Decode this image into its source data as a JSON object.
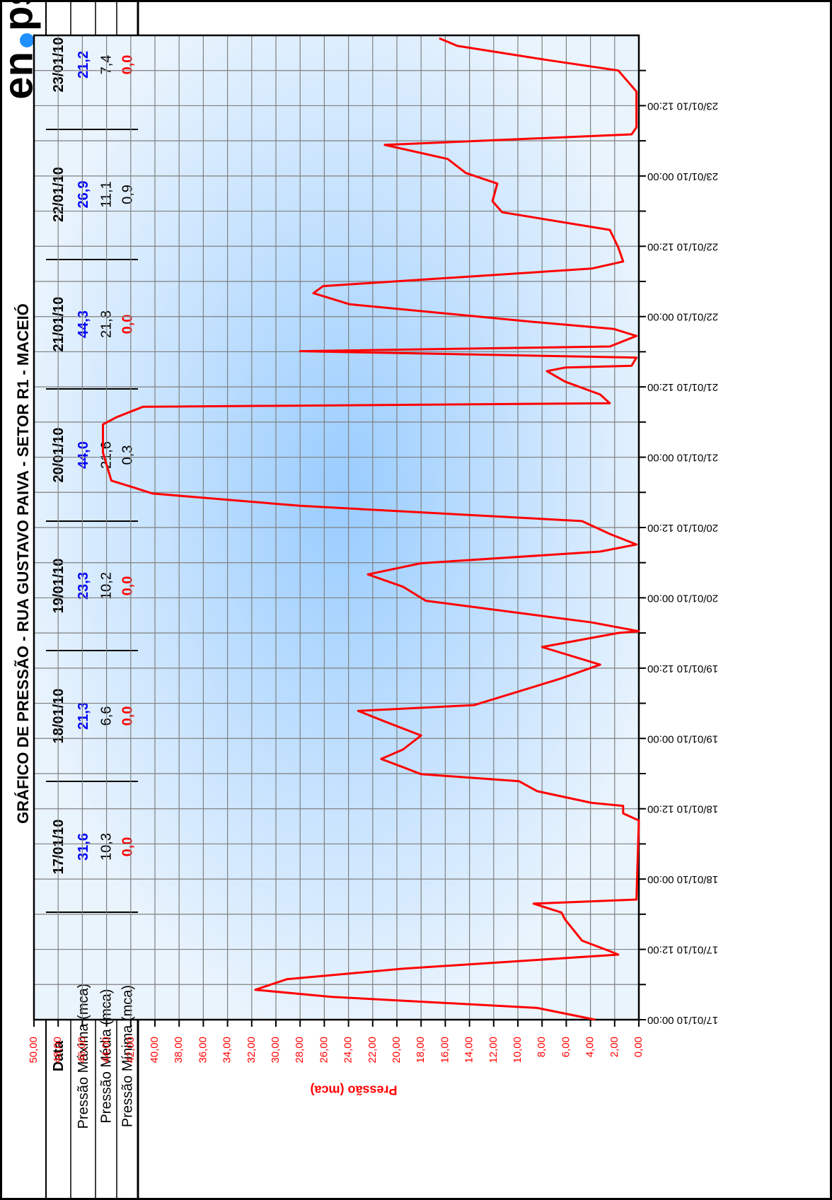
{
  "header": {
    "title": "GRÁFICO DE PRESSÃO -  RUA GUSTAVO PAIVA - SETOR R1 - MACEIÓ",
    "logo": {
      "left": "en",
      "right": "ps"
    }
  },
  "table": {
    "header": [
      "Data",
      "17/01/10",
      "18/01/10",
      "19/01/10",
      "20/01/10",
      "21/01/10",
      "22/01/10",
      "23/01/10"
    ],
    "rows": [
      [
        "Pressão Máxima (mca)",
        "31,6",
        "21,3",
        "23,3",
        "44,0",
        "44,3",
        "26,9",
        "21,2"
      ],
      [
        "Pressão Média (mca)",
        "10,3",
        "6,6",
        "10,2",
        "21,6",
        "21,8",
        "11,1",
        "7,4"
      ],
      [
        "Pressão Mínima (mca)",
        "0,0",
        "0,0",
        "0,0",
        "0,3",
        "0,0",
        "0,9",
        "0,0"
      ]
    ]
  },
  "chart_data": {
    "type": "line",
    "y_label": "Pressão (mca)",
    "x": [
      "17/01/10 00:00",
      "17/01/10 02:00",
      "17/01/10 03:54",
      "17/01/10 05:06",
      "17/01/10 06:54",
      "17/01/10 08:42",
      "17/01/10 11:06",
      "17/01/10 11:42",
      "17/01/10 13:30",
      "17/01/10 17:06",
      "17/01/10 18:18",
      "17/01/10 19:48",
      "17/01/10 20:30",
      "18/01/10 10:00",
      "18/01/10 11:12",
      "18/01/10 12:30",
      "18/01/10 13:00",
      "18/01/10 15:00",
      "18/01/10 16:42",
      "18/01/10 17:54",
      "18/01/10 19:06",
      "18/01/10 20:30",
      "18/01/10 22:06",
      "19/01/10 00:30",
      "19/01/10 02:54",
      "19/01/10 04:42",
      "19/01/10 05:42",
      "19/01/10 10:12",
      "19/01/10 12:36",
      "19/01/10 15:36",
      "19/01/10 18:00",
      "19/01/10 18:18",
      "19/01/10 19:48",
      "19/01/10 23:30",
      "20/01/10 01:54",
      "20/01/10 04:00",
      "20/01/10 05:54",
      "20/01/10 07:54",
      "20/01/10 09:06",
      "20/01/10 10:54",
      "20/01/10 13:06",
      "20/01/10 15:42",
      "20/01/10 17:48",
      "20/01/10 18:48",
      "20/01/10 20:00",
      "21/01/10 00:48",
      "21/01/10 05:36",
      "21/01/10 06:48",
      "21/01/10 08:36",
      "21/01/10 09:12",
      "21/01/10 10:42",
      "21/01/10 12:54",
      "21/01/10 14:42",
      "21/01/10 15:18",
      "21/01/10 15:36",
      "21/01/10 17:00",
      "21/01/10 18:06",
      "21/01/10 18:54",
      "21/01/10 20:42",
      "21/01/10 21:54",
      "21/01/10 23:06",
      "22/01/10 02:06",
      "22/01/10 04:00",
      "22/01/10 05:12",
      "22/01/10 08:12",
      "22/01/10 09:24",
      "22/01/10 11:48",
      "22/01/10 14:48",
      "22/01/10 17:48",
      "22/01/10 19:42",
      "22/01/10 22:42",
      "23/01/10 00:30",
      "23/01/10 02:54",
      "23/01/10 05:18",
      "23/01/10 07:06",
      "23/01/10 08:18",
      "23/01/10 14:24",
      "23/01/10 18:00",
      "23/01/10 19:48",
      "23/01/10 22:12",
      "23/01/10 23:30"
    ],
    "series": [
      {
        "color": "#ff0000",
        "values": [
          3.6,
          8.4,
          25.4,
          31.7,
          29.1,
          19.5,
          1.7,
          2.4,
          4.7,
          6.1,
          6.4,
          8.7,
          0.2,
          0,
          1.3,
          1.3,
          3.9,
          8.4,
          9.9,
          18.0,
          19.5,
          21.3,
          19.5,
          18.0,
          21.0,
          23.2,
          13.6,
          6.5,
          3.2,
          8.0,
          1.7,
          0,
          3.9,
          17.6,
          19.5,
          22.4,
          18.0,
          3.2,
          0.2,
          2.4,
          4.7,
          28.0,
          40.2,
          41.7,
          43.6,
          44.3,
          44.3,
          43.2,
          41.0,
          2.4,
          3.2,
          6.1,
          7.6,
          6.1,
          0.6,
          0.2,
          28.0,
          2.4,
          0.2,
          2.1,
          8.7,
          23.9,
          26.9,
          26.1,
          3.9,
          1.3,
          1.7,
          2.4,
          11.3,
          12.1,
          11.7,
          14.3,
          15.8,
          21.0,
          0.6,
          0.2,
          0.2,
          1.7,
          7.6,
          15.0,
          16.5
        ]
      }
    ],
    "xlim": [
      "17/01/10 00:00",
      "24/01/10 00:00"
    ],
    "xticks": [
      "17/01/10 00:00",
      "17/01/10 12:00",
      "18/01/10 00:00",
      "18/01/10 12:00",
      "19/01/10 00:00",
      "19/01/10 12:00",
      "20/01/10 00:00",
      "20/01/10 12:00",
      "21/01/10 00:00",
      "21/01/10 12:00",
      "22/01/10 00:00",
      "22/01/10 12:00",
      "23/01/10 00:00",
      "23/01/10 12:00"
    ],
    "xminorticks": [
      "17/01/10 06:00",
      "17/01/10 18:00",
      "18/01/10 06:00",
      "18/01/10 18:00",
      "19/01/10 06:00",
      "19/01/10 18:00",
      "20/01/10 06:00",
      "20/01/10 18:00",
      "21/01/10 06:00",
      "21/01/10 18:00",
      "22/01/10 06:00",
      "22/01/10 18:00",
      "23/01/10 06:00",
      "23/01/10 18:00"
    ],
    "ylim": [
      0,
      50
    ],
    "yticks": [
      {
        "value": 0,
        "label": "0,00"
      },
      {
        "value": 2,
        "label": "2,00"
      },
      {
        "value": 4,
        "label": "4,00"
      },
      {
        "value": 6,
        "label": "6,00"
      },
      {
        "value": 8,
        "label": "8,00"
      },
      {
        "value": 10,
        "label": "10,00"
      },
      {
        "value": 12,
        "label": "12,00"
      },
      {
        "value": 14,
        "label": "14,00"
      },
      {
        "value": 16,
        "label": "16,00"
      },
      {
        "value": 18,
        "label": "18,00"
      },
      {
        "value": 20,
        "label": "20,00"
      },
      {
        "value": 22,
        "label": "22,00"
      },
      {
        "value": 24,
        "label": "24,00"
      },
      {
        "value": 26,
        "label": "26,00"
      },
      {
        "value": 28,
        "label": "28,00"
      },
      {
        "value": 30,
        "label": "30,00"
      },
      {
        "value": 32,
        "label": "32,00"
      },
      {
        "value": 34,
        "label": "34,00"
      },
      {
        "value": 36,
        "label": "36,00"
      },
      {
        "value": 38,
        "label": "38,00"
      },
      {
        "value": 40,
        "label": "40,00"
      },
      {
        "value": 42,
        "label": "42,00"
      },
      {
        "value": 44,
        "label": "44,00"
      },
      {
        "value": 46,
        "label": "46,00"
      },
      {
        "value": 48,
        "label": "48,00"
      },
      {
        "value": 50,
        "label": "50,00"
      }
    ],
    "grid": true
  }
}
